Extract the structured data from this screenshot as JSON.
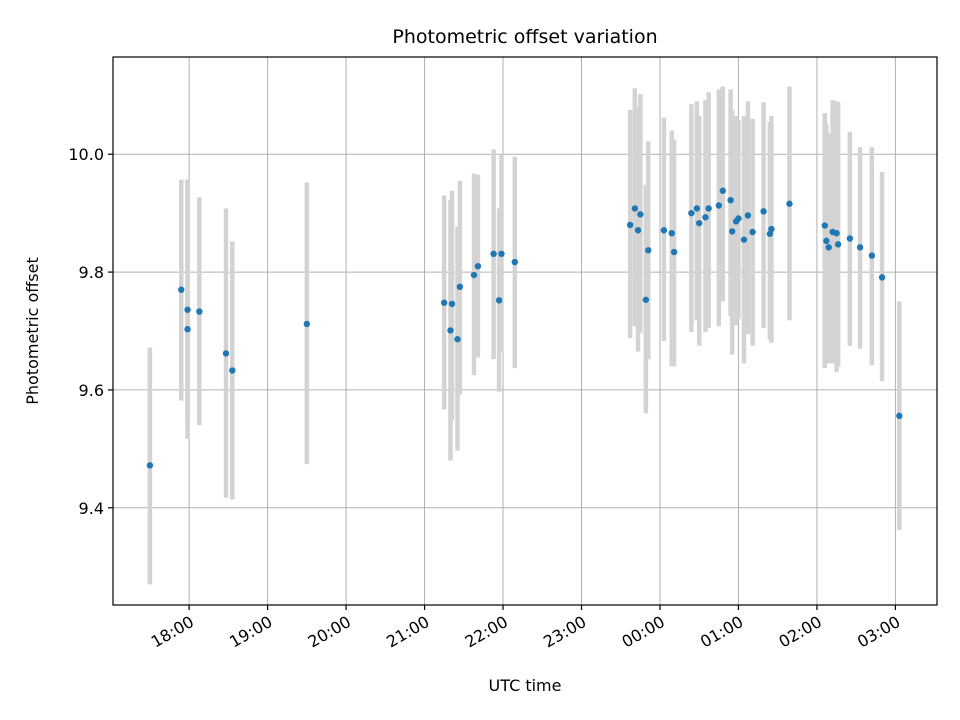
{
  "chart_data": {
    "type": "scatter",
    "title": "Photometric offset variation",
    "xlabel": "UTC time",
    "ylabel": "Photometric offset",
    "x_unit": "hours since 00:00 UTC",
    "xlim": [
      -6.97,
      3.53
    ],
    "ylim": [
      9.235,
      10.165
    ],
    "x_ticks": [
      {
        "x": -6,
        "label": "18:00"
      },
      {
        "x": -5,
        "label": "19:00"
      },
      {
        "x": -4,
        "label": "20:00"
      },
      {
        "x": -3,
        "label": "21:00"
      },
      {
        "x": -2,
        "label": "22:00"
      },
      {
        "x": -1,
        "label": "23:00"
      },
      {
        "x": 0,
        "label": "00:00"
      },
      {
        "x": 1,
        "label": "01:00"
      },
      {
        "x": 2,
        "label": "02:00"
      },
      {
        "x": 3,
        "label": "03:00"
      }
    ],
    "y_ticks": [
      {
        "y": 9.4,
        "label": "9.4"
      },
      {
        "y": 9.6,
        "label": "9.6"
      },
      {
        "y": 9.8,
        "label": "9.8"
      },
      {
        "y": 10.0,
        "label": "10.0"
      }
    ],
    "grid": true,
    "marker_color": "#1f77b4",
    "errorbar_color": "#d3d3d3",
    "points": [
      {
        "x": -6.5,
        "y": 9.472,
        "lo": 9.27,
        "hi": 9.672
      },
      {
        "x": -6.1,
        "y": 9.77,
        "lo": 9.582,
        "hi": 9.957
      },
      {
        "x": -6.02,
        "y": 9.703,
        "lo": 9.55,
        "hi": 9.957
      },
      {
        "x": -6.02,
        "y": 9.736,
        "lo": 9.517,
        "hi": 9.957
      },
      {
        "x": -5.87,
        "y": 9.733,
        "lo": 9.54,
        "hi": 9.927
      },
      {
        "x": -5.53,
        "y": 9.662,
        "lo": 9.417,
        "hi": 9.908
      },
      {
        "x": -5.45,
        "y": 9.633,
        "lo": 9.414,
        "hi": 9.852
      },
      {
        "x": -4.5,
        "y": 9.712,
        "lo": 9.474,
        "hi": 9.952
      },
      {
        "x": -2.75,
        "y": 9.748,
        "lo": 9.567,
        "hi": 9.93
      },
      {
        "x": -2.67,
        "y": 9.701,
        "lo": 9.48,
        "hi": 9.922
      },
      {
        "x": -2.65,
        "y": 9.746,
        "lo": 9.548,
        "hi": 9.938
      },
      {
        "x": -2.58,
        "y": 9.686,
        "lo": 9.497,
        "hi": 9.877
      },
      {
        "x": -2.55,
        "y": 9.775,
        "lo": 9.592,
        "hi": 9.955
      },
      {
        "x": -2.37,
        "y": 9.795,
        "lo": 9.625,
        "hi": 9.967
      },
      {
        "x": -2.32,
        "y": 9.81,
        "lo": 9.655,
        "hi": 9.965
      },
      {
        "x": -2.12,
        "y": 9.831,
        "lo": 9.652,
        "hi": 10.008
      },
      {
        "x": -2.05,
        "y": 9.752,
        "lo": 9.597,
        "hi": 9.908
      },
      {
        "x": -2.02,
        "y": 9.831,
        "lo": 9.665,
        "hi": 10.0
      },
      {
        "x": -1.85,
        "y": 9.817,
        "lo": 9.637,
        "hi": 9.996
      },
      {
        "x": -0.18,
        "y": 9.753,
        "lo": 9.56,
        "hi": 9.948
      },
      {
        "x": -0.38,
        "y": 9.88,
        "lo": 9.688,
        "hi": 10.075
      },
      {
        "x": -0.32,
        "y": 9.908,
        "lo": 9.708,
        "hi": 10.112
      },
      {
        "x": -0.28,
        "y": 9.871,
        "lo": 9.665,
        "hi": 10.08
      },
      {
        "x": -0.25,
        "y": 9.898,
        "lo": 9.697,
        "hi": 10.102
      },
      {
        "x": -0.15,
        "y": 9.837,
        "lo": 9.652,
        "hi": 10.022
      },
      {
        "x": 0.05,
        "y": 9.871,
        "lo": 9.683,
        "hi": 10.062
      },
      {
        "x": 0.15,
        "y": 9.866,
        "lo": 9.64,
        "hi": 10.04
      },
      {
        "x": 0.18,
        "y": 9.834,
        "lo": 9.64,
        "hi": 10.025
      },
      {
        "x": 0.4,
        "y": 9.9,
        "lo": 9.698,
        "hi": 10.085
      },
      {
        "x": 0.47,
        "y": 9.908,
        "lo": 9.718,
        "hi": 10.09
      },
      {
        "x": 0.5,
        "y": 9.883,
        "lo": 9.675,
        "hi": 10.065
      },
      {
        "x": 0.58,
        "y": 9.893,
        "lo": 9.698,
        "hi": 10.092
      },
      {
        "x": 0.62,
        "y": 9.908,
        "lo": 9.705,
        "hi": 10.105
      },
      {
        "x": 0.75,
        "y": 9.913,
        "lo": 9.708,
        "hi": 10.11
      },
      {
        "x": 0.8,
        "y": 9.938,
        "lo": 9.75,
        "hi": 10.115
      },
      {
        "x": 0.9,
        "y": 9.922,
        "lo": 9.725,
        "hi": 10.11
      },
      {
        "x": 0.92,
        "y": 9.869,
        "lo": 9.66,
        "hi": 10.075
      },
      {
        "x": 0.97,
        "y": 9.886,
        "lo": 9.71,
        "hi": 10.065
      },
      {
        "x": 1.0,
        "y": 9.891,
        "lo": 9.72,
        "hi": 10.058
      },
      {
        "x": 1.07,
        "y": 9.855,
        "lo": 9.645,
        "hi": 10.065
      },
      {
        "x": 1.12,
        "y": 9.896,
        "lo": 9.695,
        "hi": 10.09
      },
      {
        "x": 1.18,
        "y": 9.868,
        "lo": 9.675,
        "hi": 10.06
      },
      {
        "x": 1.32,
        "y": 9.903,
        "lo": 9.705,
        "hi": 10.088
      },
      {
        "x": 1.4,
        "y": 9.865,
        "lo": 9.685,
        "hi": 10.055
      },
      {
        "x": 1.42,
        "y": 9.873,
        "lo": 9.68,
        "hi": 10.065
      },
      {
        "x": 1.65,
        "y": 9.916,
        "lo": 9.718,
        "hi": 10.115
      },
      {
        "x": 2.1,
        "y": 9.879,
        "lo": 9.637,
        "hi": 10.07
      },
      {
        "x": 2.12,
        "y": 9.853,
        "lo": 9.65,
        "hi": 10.052
      },
      {
        "x": 2.15,
        "y": 9.842,
        "lo": 9.645,
        "hi": 10.035
      },
      {
        "x": 2.2,
        "y": 9.868,
        "lo": 9.645,
        "hi": 10.092
      },
      {
        "x": 2.25,
        "y": 9.866,
        "lo": 9.63,
        "hi": 10.09
      },
      {
        "x": 2.27,
        "y": 9.847,
        "lo": 9.64,
        "hi": 10.088
      },
      {
        "x": 2.42,
        "y": 9.857,
        "lo": 9.675,
        "hi": 10.038
      },
      {
        "x": 2.55,
        "y": 9.842,
        "lo": 9.67,
        "hi": 10.012
      },
      {
        "x": 2.7,
        "y": 9.828,
        "lo": 9.642,
        "hi": 10.012
      },
      {
        "x": 2.83,
        "y": 9.791,
        "lo": 9.615,
        "hi": 9.97
      },
      {
        "x": 3.05,
        "y": 9.556,
        "lo": 9.362,
        "hi": 9.75
      }
    ]
  }
}
